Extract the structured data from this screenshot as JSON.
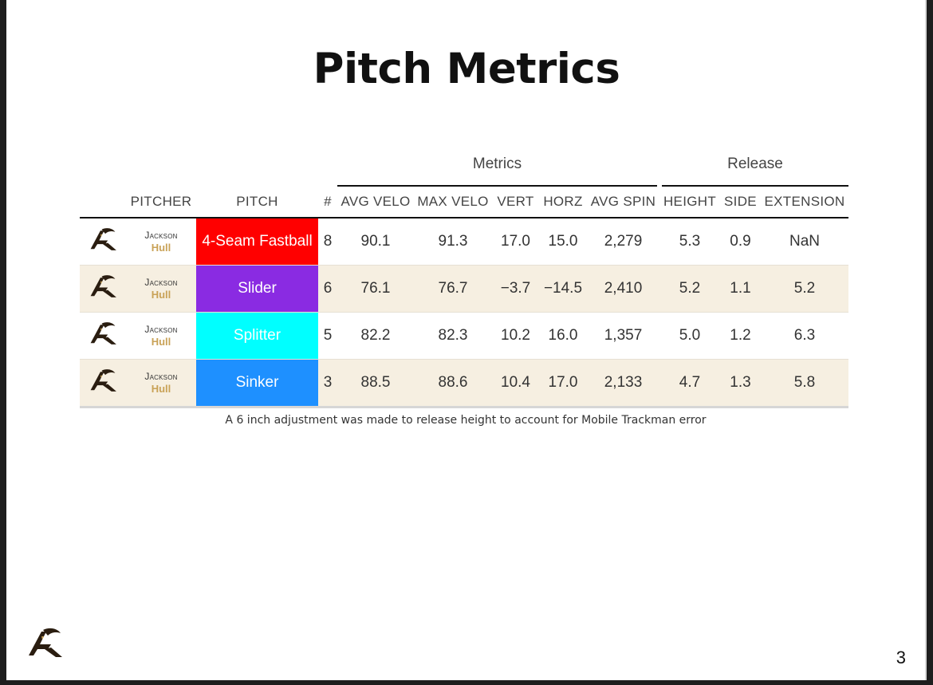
{
  "slide": {
    "title": "Pitch Metrics",
    "footnote": "A 6 inch adjustment was made to release height to account for Mobile Trackman error",
    "page_number": "3",
    "logo_icon": "team-logo-icon"
  },
  "table": {
    "groups": {
      "metrics": "Metrics",
      "release": "Release"
    },
    "headers": {
      "pitcher": "PITCHER",
      "pitch": "PITCH",
      "count": "#",
      "avg_velo": "AVG VELO",
      "max_velo": "MAX VELO",
      "vert": "VERT",
      "horz": "HORZ",
      "avg_spin": "AVG SPIN",
      "height": "HEIGHT",
      "side": "SIDE",
      "extension": "EXTENSION"
    },
    "rows": [
      {
        "first": "Jackson",
        "last": "Hull",
        "pitch": "4-Seam Fastball",
        "pitch_color": "#ff0000",
        "count": "8",
        "avg_velo": "90.1",
        "max_velo": "91.3",
        "vert": "17.0",
        "horz": "15.0",
        "avg_spin": "2,279",
        "height": "5.3",
        "side": "0.9",
        "extension": "NaN"
      },
      {
        "first": "Jackson",
        "last": "Hull",
        "pitch": "Slider",
        "pitch_color": "#8a2be2",
        "count": "6",
        "avg_velo": "76.1",
        "max_velo": "76.7",
        "vert": "−3.7",
        "horz": "−14.5",
        "avg_spin": "2,410",
        "height": "5.2",
        "side": "1.1",
        "extension": "5.2"
      },
      {
        "first": "Jackson",
        "last": "Hull",
        "pitch": "Splitter",
        "pitch_color": "#00ffff",
        "count": "5",
        "avg_velo": "82.2",
        "max_velo": "82.3",
        "vert": "10.2",
        "horz": "16.0",
        "avg_spin": "1,357",
        "height": "5.0",
        "side": "1.2",
        "extension": "6.3"
      },
      {
        "first": "Jackson",
        "last": "Hull",
        "pitch": "Sinker",
        "pitch_color": "#1e90ff",
        "count": "3",
        "avg_velo": "88.5",
        "max_velo": "88.6",
        "vert": "10.4",
        "horz": "17.0",
        "avg_spin": "2,133",
        "height": "4.7",
        "side": "1.3",
        "extension": "5.8"
      }
    ]
  }
}
